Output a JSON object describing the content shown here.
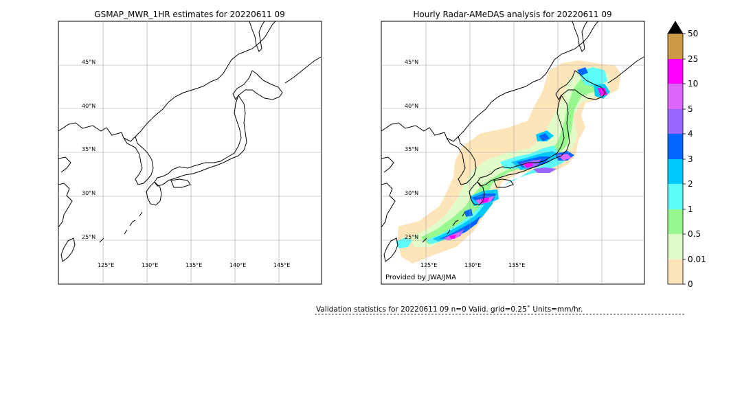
{
  "left_panel": {
    "title": "GSMAP_MWR_1HR estimates for 20220611 09",
    "lat_labels": [
      "45°N",
      "40°N",
      "35°N",
      "30°N",
      "25°N"
    ],
    "lon_labels": [
      "125°E",
      "130°E",
      "135°E",
      "140°E",
      "145°E"
    ]
  },
  "right_panel": {
    "title": "Hourly Radar-AMeDAS analysis for 20220611 09",
    "lat_labels": [
      "45°N",
      "40°N",
      "35°N",
      "30°N",
      "25°N"
    ],
    "lon_labels": [
      "125°E",
      "130°E",
      "135°E"
    ],
    "credit": "Provided by JWA/JMA"
  },
  "colorbar": {
    "labels": [
      "0",
      "0.01",
      "0.5",
      "1",
      "2",
      "3",
      "4",
      "5",
      "10",
      "25",
      "50"
    ],
    "colors": [
      "#fde5b9",
      "#e1fbc9",
      "#98f890",
      "#5efbfb",
      "#00cafd",
      "#0066ff",
      "#9966ff",
      "#dd66ff",
      "#ff00ff",
      "#cc9944"
    ],
    "extend_color": "#000000"
  },
  "stats": {
    "text": "Validation statistics for 20220611 09  n=0 Valid. grid=0.25˚ Units=mm/hr."
  },
  "colors": {
    "coast": "#000000",
    "grid": "#a0a0a0",
    "frame": "#000000"
  }
}
